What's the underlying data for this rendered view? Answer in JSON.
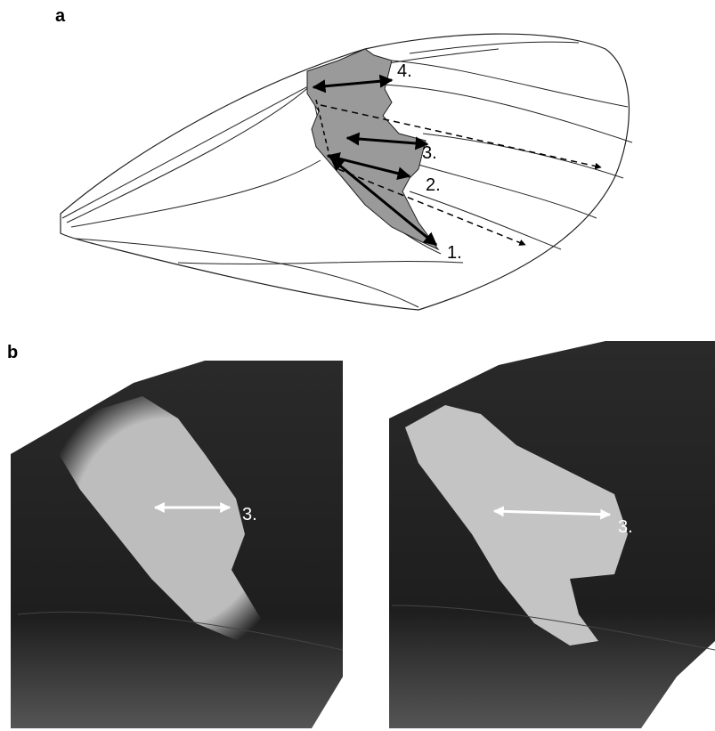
{
  "panels": [
    {
      "label": "a",
      "measures": [
        "1.",
        "2.",
        "3.",
        "4."
      ]
    },
    {
      "label": "b",
      "photos": [
        {
          "measure": "3."
        },
        {
          "measure": "3."
        }
      ]
    }
  ]
}
